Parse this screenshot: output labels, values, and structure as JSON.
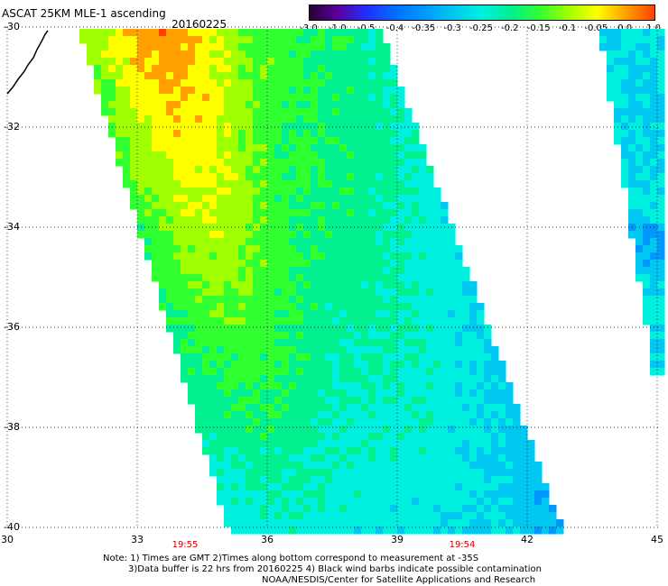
{
  "header": {
    "title": "ASCAT 25KM MLE-1 ascending",
    "date": "20160225"
  },
  "colorbar": {
    "labels": [
      "-3.0",
      "-1.0",
      "-0.5",
      "-0.4",
      "-0.35",
      "-0.3",
      "-0.25",
      "-0.2",
      "-0.15",
      "-0.1",
      "-0.05",
      "0.0",
      "1.0"
    ],
    "colors": [
      "#2a0033",
      "#5a00a0",
      "#2030ff",
      "#0070ff",
      "#0098ff",
      "#00c8f0",
      "#00f0e0",
      "#00f090",
      "#30ff30",
      "#a0ff00",
      "#ffff00",
      "#ffa000",
      "#ff4000"
    ]
  },
  "map": {
    "lat_labels": [
      "-30",
      "-32",
      "-34",
      "-36",
      "-38",
      "-40"
    ],
    "lon_labels": [
      "30",
      "33",
      "36",
      "39",
      "42",
      "45"
    ],
    "pass_times": [
      "19:55",
      "19:54"
    ],
    "lat_range": [
      -40,
      -30
    ],
    "lon_range": [
      30,
      45
    ]
  },
  "notes": {
    "line1": "Note: 1) Times are GMT 2)Times along bottom correspond to measurement at -35S",
    "line2": "3)Data buffer is 22 hrs from 20160225 4) Black wind barbs indicate possible contamination",
    "line3": "NOAA/NESDIS/Center for Satellite Applications and Research"
  }
}
